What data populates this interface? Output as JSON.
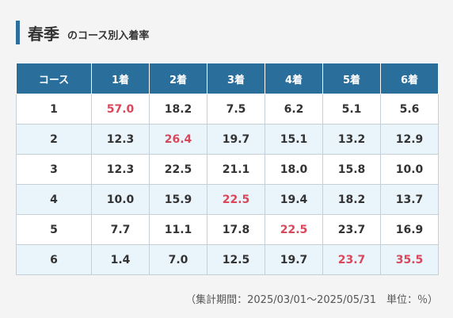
{
  "header": {
    "title": "春季",
    "subtitle": "のコース別入着率"
  },
  "table": {
    "columns": [
      "コース",
      "1着",
      "2着",
      "3着",
      "4着",
      "5着",
      "6着"
    ],
    "rows": [
      {
        "course": "1",
        "values": [
          "57.0",
          "18.2",
          "7.5",
          "6.2",
          "5.1",
          "5.6"
        ],
        "highlight": [
          0
        ]
      },
      {
        "course": "2",
        "values": [
          "12.3",
          "26.4",
          "19.7",
          "15.1",
          "13.2",
          "12.9"
        ],
        "highlight": [
          1
        ]
      },
      {
        "course": "3",
        "values": [
          "12.3",
          "22.5",
          "21.1",
          "18.0",
          "15.8",
          "10.0"
        ],
        "highlight": []
      },
      {
        "course": "4",
        "values": [
          "10.0",
          "15.9",
          "22.5",
          "19.4",
          "18.2",
          "13.7"
        ],
        "highlight": [
          2
        ]
      },
      {
        "course": "5",
        "values": [
          "7.7",
          "11.1",
          "17.8",
          "22.5",
          "23.7",
          "16.9"
        ],
        "highlight": [
          3
        ]
      },
      {
        "course": "6",
        "values": [
          "1.4",
          "7.0",
          "12.5",
          "19.7",
          "23.7",
          "35.5"
        ],
        "highlight": [
          4,
          5
        ]
      }
    ]
  },
  "footnote": "（集計期間：2025/03/01～2025/05/31　単位：％）",
  "colors": {
    "accent": "#2a6e9b",
    "highlight": "#d9475a",
    "alt_row": "#eaf4fb"
  }
}
